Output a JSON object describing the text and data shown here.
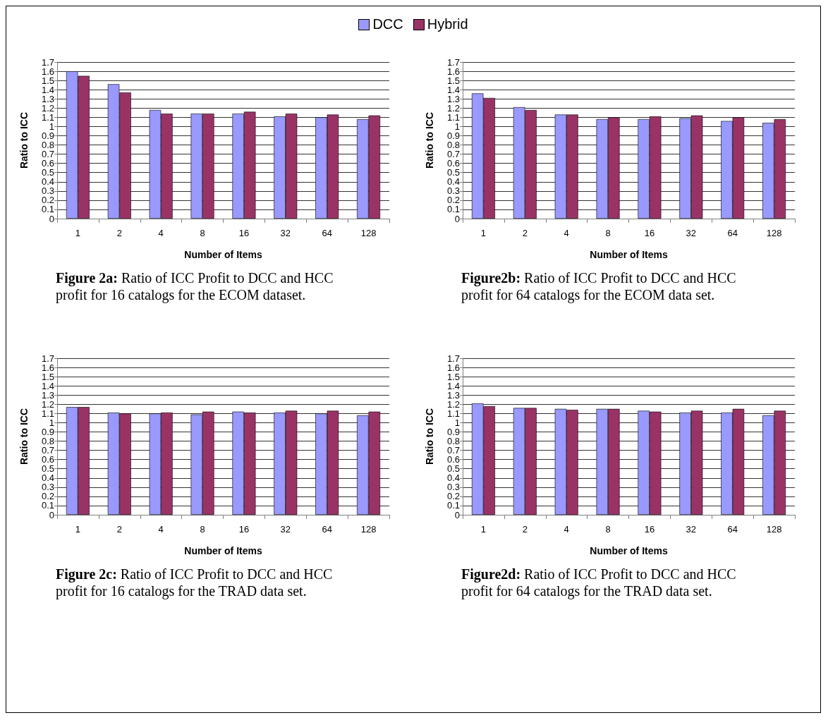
{
  "chart_data": [
    {
      "type": "bar",
      "xlabel": "Number of Items",
      "ylabel": "Ratio to ICC",
      "categories": [
        "1",
        "2",
        "4",
        "8",
        "16",
        "32",
        "64",
        "128"
      ],
      "series": [
        {
          "name": "DCC",
          "color": "#9999ff",
          "values": [
            1.6,
            1.46,
            1.18,
            1.14,
            1.14,
            1.11,
            1.1,
            1.08
          ]
        },
        {
          "name": "Hybrid",
          "color": "#993366",
          "values": [
            1.55,
            1.37,
            1.14,
            1.14,
            1.16,
            1.14,
            1.13,
            1.12
          ]
        }
      ],
      "ylim": [
        0,
        1.7
      ],
      "yticks": [
        0,
        0.1,
        0.2,
        0.3,
        0.4,
        0.5,
        0.6,
        0.7,
        0.8,
        0.9,
        1,
        1.1,
        1.2,
        1.3,
        1.4,
        1.5,
        1.6,
        1.7
      ],
      "grid": "y",
      "legend": "top",
      "annotations": [
        "Figure 2a: Ratio of ICC Profit to DCC and HCC profit for 16 catalogs for the ECOM dataset."
      ]
    },
    {
      "type": "bar",
      "xlabel": "Number of Items",
      "ylabel": "Ratio to ICC",
      "categories": [
        "1",
        "2",
        "4",
        "8",
        "16",
        "32",
        "64",
        "128"
      ],
      "series": [
        {
          "color": "#9999ff",
          "values": [
            1.36,
            1.21,
            1.13,
            1.08,
            1.08,
            1.09,
            1.06,
            1.04
          ]
        },
        {
          "color": "#993366",
          "values": [
            1.31,
            1.18,
            1.13,
            1.1,
            1.11,
            1.12,
            1.1,
            1.08
          ]
        }
      ],
      "ylim": [
        0,
        1.7
      ],
      "yticks": [
        0,
        0.1,
        0.2,
        0.3,
        0.4,
        0.5,
        0.6,
        0.7,
        0.8,
        0.9,
        1,
        1.1,
        1.2,
        1.3,
        1.4,
        1.5,
        1.6,
        1.7
      ],
      "grid": "y",
      "annotations": [
        "Figure2b: Ratio of ICC Profit to DCC and HCC profit for 64 catalogs for the ECOM data set."
      ]
    },
    {
      "type": "bar",
      "xlabel": "Number of Items",
      "ylabel": "Ratio to ICC",
      "categories": [
        "1",
        "2",
        "4",
        "8",
        "16",
        "32",
        "64",
        "128"
      ],
      "series": [
        {
          "color": "#9999ff",
          "values": [
            1.17,
            1.11,
            1.1,
            1.09,
            1.12,
            1.11,
            1.1,
            1.08
          ]
        },
        {
          "color": "#993366",
          "values": [
            1.17,
            1.1,
            1.11,
            1.12,
            1.11,
            1.13,
            1.13,
            1.12
          ]
        }
      ],
      "ylim": [
        0,
        1.7
      ],
      "yticks": [
        0,
        0.1,
        0.2,
        0.3,
        0.4,
        0.5,
        0.6,
        0.7,
        0.8,
        0.9,
        1,
        1.1,
        1.2,
        1.3,
        1.4,
        1.5,
        1.6,
        1.7
      ],
      "grid": "y",
      "annotations": [
        "Figure 2c: Ratio of ICC Profit to DCC and HCC profit for 16 catalogs for the TRAD data set."
      ]
    },
    {
      "type": "bar",
      "xlabel": "Number of Items",
      "ylabel": "Ratio to ICC",
      "categories": [
        "1",
        "2",
        "4",
        "8",
        "16",
        "32",
        "64",
        "128"
      ],
      "series": [
        {
          "color": "#9999ff",
          "values": [
            1.21,
            1.16,
            1.15,
            1.15,
            1.13,
            1.11,
            1.11,
            1.08
          ]
        },
        {
          "color": "#993366",
          "values": [
            1.18,
            1.16,
            1.14,
            1.15,
            1.12,
            1.13,
            1.15,
            1.13
          ]
        }
      ],
      "ylim": [
        0,
        1.7
      ],
      "yticks": [
        0,
        0.1,
        0.2,
        0.3,
        0.4,
        0.5,
        0.6,
        0.7,
        0.8,
        0.9,
        1,
        1.1,
        1.2,
        1.3,
        1.4,
        1.5,
        1.6,
        1.7
      ],
      "grid": "y",
      "annotations": [
        "Figure2d: Ratio of ICC Profit to DCC and HCC profit for 64 catalogs for the TRAD data set."
      ]
    }
  ]
}
